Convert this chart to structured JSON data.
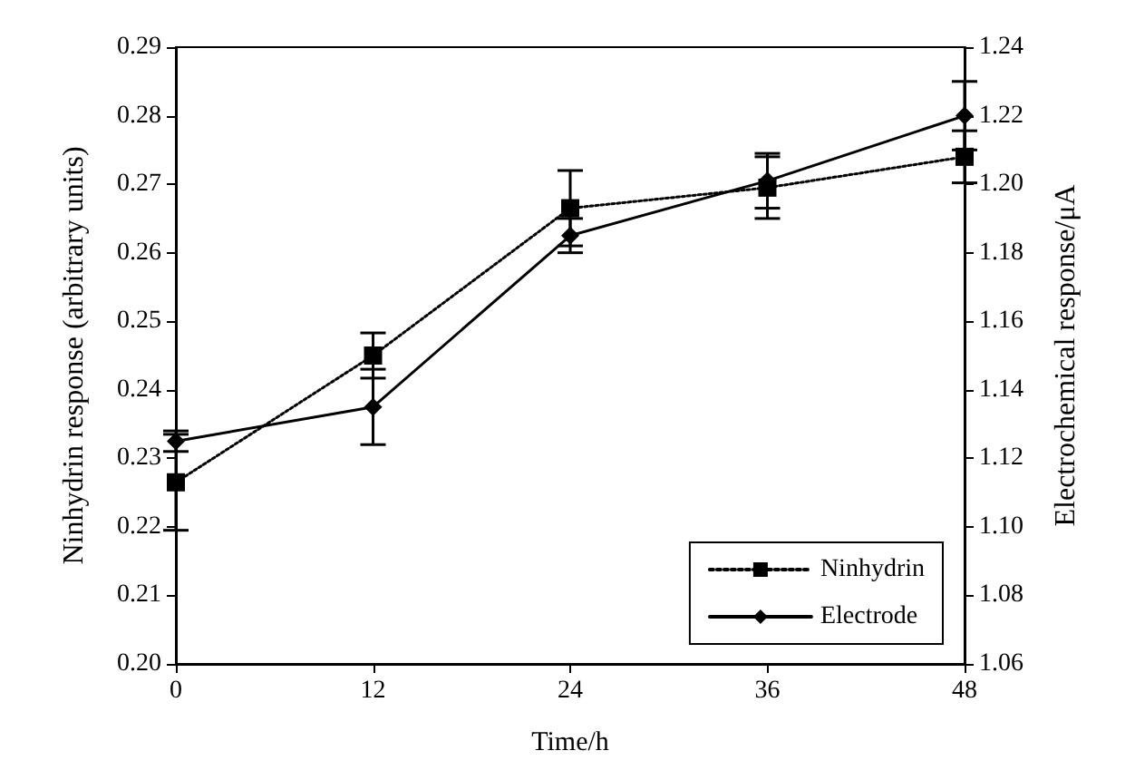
{
  "chart_data": {
    "type": "line",
    "xlabel": "Time/h",
    "ylabel": "Ninhydrin response (arbitrary units)",
    "y2label": "Electrochemical response/μA",
    "x": [
      0,
      12,
      24,
      36,
      48
    ],
    "xlim": [
      0,
      48
    ],
    "xticks": [
      0,
      12,
      24,
      36,
      48
    ],
    "ylim": [
      0.2,
      0.29
    ],
    "yticks": [
      {
        "value": 0.2,
        "label": "0.20"
      },
      0.21,
      0.22,
      0.23,
      0.24,
      0.25,
      0.26,
      0.27,
      0.28,
      0.29
    ],
    "y2lim": [
      1.06,
      1.24
    ],
    "y2ticks": [
      1.06,
      1.08,
      {
        "value": 1.1,
        "label": "1.10"
      },
      1.12,
      1.14,
      1.16,
      1.18,
      {
        "value": 1.2,
        "label": "1.20"
      },
      1.22,
      1.24
    ],
    "series": [
      {
        "name": "Ninhydrin",
        "color": "#000000",
        "values": [
          0.2265,
          0.245,
          0.2665,
          0.2695,
          0.274
        ],
        "errors": [
          0.007,
          0.0033,
          0.0055,
          0.0045,
          0.0038
        ],
        "marker": "square",
        "line_style": "dotted"
      },
      {
        "name": "Electrode",
        "color": "#000000",
        "values": [
          1.125,
          1.135,
          1.185,
          1.201,
          1.22
        ],
        "errors": [
          0.003,
          0.011,
          0.005,
          0.008,
          0.01
        ],
        "marker": "diamond",
        "line_style": "solid",
        "axis": "y2"
      }
    ],
    "grid": false,
    "legend": "bottom right"
  }
}
